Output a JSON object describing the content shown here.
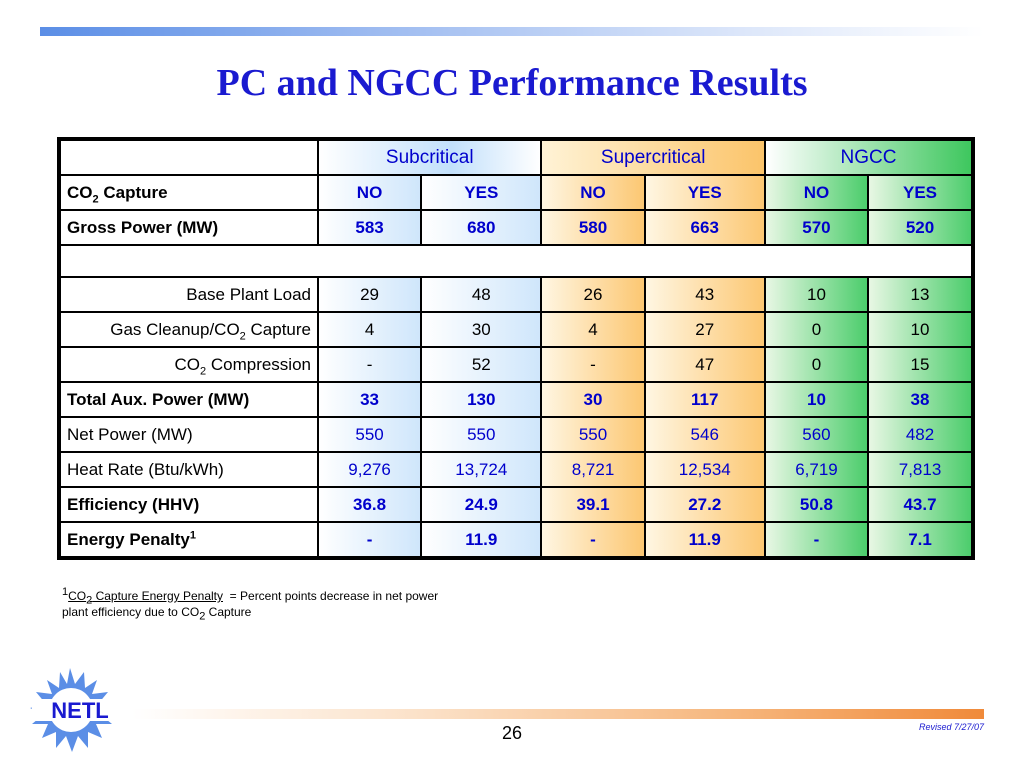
{
  "title": "PC and NGCC Performance Results",
  "header": {
    "groups": [
      "Subcritical",
      "Supercritical",
      "NGCC"
    ]
  },
  "rows": {
    "co2_capture": {
      "label": "CO",
      "sub": "2",
      "label_rest": " Capture",
      "values": [
        "NO",
        "YES",
        "NO",
        "YES",
        "NO",
        "YES"
      ]
    },
    "gross_power": {
      "label": "Gross Power (MW)",
      "values": [
        "583",
        "680",
        "580",
        "663",
        "570",
        "520"
      ]
    },
    "base_plant_load": {
      "label": "Base Plant Load",
      "values": [
        "29",
        "48",
        "26",
        "43",
        "10",
        "13"
      ]
    },
    "gas_cleanup": {
      "label": "Gas Cleanup/CO",
      "sub": "2",
      "label_rest": " Capture",
      "values": [
        "4",
        "30",
        "4",
        "27",
        "0",
        "10"
      ]
    },
    "co2_compression": {
      "label": "CO",
      "sub": "2",
      "label_rest": " Compression",
      "values": [
        "-",
        "52",
        "-",
        "47",
        "0",
        "15"
      ]
    },
    "total_aux": {
      "label": "Total Aux. Power (MW)",
      "values": [
        "33",
        "130",
        "30",
        "117",
        "10",
        "38"
      ]
    },
    "net_power": {
      "label": "Net Power (MW)",
      "values": [
        "550",
        "550",
        "550",
        "546",
        "560",
        "482"
      ]
    },
    "heat_rate": {
      "label": "Heat Rate (Btu/kWh)",
      "values": [
        "9,276",
        "13,724",
        "8,721",
        "12,534",
        "6,719",
        "7,813"
      ]
    },
    "efficiency": {
      "label": "Efficiency (HHV)",
      "values": [
        "36.8",
        "24.9",
        "39.1",
        "27.2",
        "50.8",
        "43.7"
      ]
    },
    "energy_penalty": {
      "label": "Energy Penalty",
      "sup": "1",
      "values": [
        "-",
        "11.9",
        "-",
        "11.9",
        "-",
        "7.1"
      ]
    }
  },
  "footnote": {
    "marker": "1",
    "term_a": "CO",
    "term_sub": "2",
    "term_b": " Capture Energy Penalty",
    "definition_a": "  = Percent points decrease in net power",
    "definition_b": "plant efficiency due to CO",
    "definition_sub": "2",
    "definition_c": " Capture"
  },
  "logo": {
    "text": "NETL"
  },
  "page_number": "26",
  "revised": "Revised 7/27/07",
  "colors": {
    "title": "#1a1ad0",
    "subcritical": "#cfe6fb",
    "supercritical": "#fcc772",
    "ngcc": "#4ccd6c",
    "top_bar": "#5b8ee6",
    "bottom_bar": "#f08a3a"
  }
}
